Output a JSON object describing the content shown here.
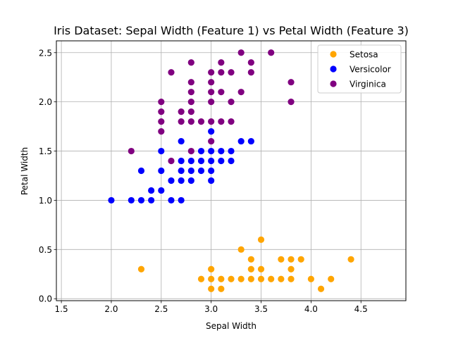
{
  "chart_data": {
    "type": "scatter",
    "title": "Iris Dataset: Sepal Width (Feature 1) vs Petal Width (Feature 3)",
    "xlabel": "Sepal Width",
    "ylabel": "Petal Width",
    "xlim": [
      1.45,
      4.95
    ],
    "ylim": [
      -0.02,
      2.62
    ],
    "xticks": [
      1.5,
      2.0,
      2.5,
      3.0,
      3.5,
      4.0,
      4.5
    ],
    "yticks": [
      0.0,
      0.5,
      1.0,
      1.5,
      2.0,
      2.5
    ],
    "xtick_labels": [
      "1.5",
      "2.0",
      "2.5",
      "3.0",
      "3.5",
      "4.0",
      "4.5"
    ],
    "ytick_labels": [
      "0.0",
      "0.5",
      "1.0",
      "1.5",
      "2.0",
      "2.5"
    ],
    "grid": true,
    "legend_position": "top-right",
    "series": [
      {
        "name": "Setosa",
        "color": "#ffa500",
        "points": [
          [
            2.3,
            0.3
          ],
          [
            2.9,
            0.2
          ],
          [
            3.0,
            0.1
          ],
          [
            3.0,
            0.2
          ],
          [
            3.0,
            0.3
          ],
          [
            3.1,
            0.1
          ],
          [
            3.1,
            0.2
          ],
          [
            3.2,
            0.2
          ],
          [
            3.3,
            0.2
          ],
          [
            3.3,
            0.5
          ],
          [
            3.4,
            0.2
          ],
          [
            3.4,
            0.3
          ],
          [
            3.4,
            0.4
          ],
          [
            3.5,
            0.2
          ],
          [
            3.5,
            0.3
          ],
          [
            3.5,
            0.6
          ],
          [
            3.6,
            0.2
          ],
          [
            3.7,
            0.2
          ],
          [
            3.7,
            0.4
          ],
          [
            3.8,
            0.2
          ],
          [
            3.8,
            0.3
          ],
          [
            3.8,
            0.4
          ],
          [
            3.9,
            0.4
          ],
          [
            4.0,
            0.2
          ],
          [
            4.1,
            0.1
          ],
          [
            4.2,
            0.2
          ],
          [
            4.4,
            0.4
          ]
        ]
      },
      {
        "name": "Versicolor",
        "color": "#0000ff",
        "points": [
          [
            2.0,
            1.0
          ],
          [
            2.2,
            1.0
          ],
          [
            2.3,
            1.0
          ],
          [
            2.3,
            1.3
          ],
          [
            2.4,
            1.0
          ],
          [
            2.4,
            1.1
          ],
          [
            2.5,
            1.1
          ],
          [
            2.5,
            1.3
          ],
          [
            2.5,
            1.5
          ],
          [
            2.6,
            1.0
          ],
          [
            2.6,
            1.2
          ],
          [
            2.7,
            1.0
          ],
          [
            2.7,
            1.2
          ],
          [
            2.7,
            1.3
          ],
          [
            2.7,
            1.4
          ],
          [
            2.7,
            1.6
          ],
          [
            2.8,
            1.2
          ],
          [
            2.8,
            1.3
          ],
          [
            2.8,
            1.4
          ],
          [
            2.9,
            1.3
          ],
          [
            2.9,
            1.4
          ],
          [
            2.9,
            1.5
          ],
          [
            3.0,
            1.2
          ],
          [
            3.0,
            1.3
          ],
          [
            3.0,
            1.4
          ],
          [
            3.0,
            1.5
          ],
          [
            3.0,
            1.7
          ],
          [
            3.1,
            1.4
          ],
          [
            3.1,
            1.5
          ],
          [
            3.2,
            1.4
          ],
          [
            3.2,
            1.5
          ],
          [
            3.3,
            1.6
          ],
          [
            3.4,
            1.6
          ]
        ]
      },
      {
        "name": "Virginica",
        "color": "#800080",
        "points": [
          [
            2.2,
            1.5
          ],
          [
            2.5,
            1.7
          ],
          [
            2.5,
            1.8
          ],
          [
            2.5,
            1.9
          ],
          [
            2.5,
            2.0
          ],
          [
            2.6,
            1.4
          ],
          [
            2.6,
            2.3
          ],
          [
            2.7,
            1.8
          ],
          [
            2.7,
            1.9
          ],
          [
            2.8,
            1.5
          ],
          [
            2.8,
            1.8
          ],
          [
            2.8,
            1.9
          ],
          [
            2.8,
            2.0
          ],
          [
            2.8,
            2.1
          ],
          [
            2.8,
            2.2
          ],
          [
            2.8,
            2.4
          ],
          [
            2.9,
            1.8
          ],
          [
            3.0,
            1.6
          ],
          [
            3.0,
            1.8
          ],
          [
            3.0,
            2.0
          ],
          [
            3.0,
            2.1
          ],
          [
            3.0,
            2.2
          ],
          [
            3.0,
            2.3
          ],
          [
            3.1,
            1.8
          ],
          [
            3.1,
            2.1
          ],
          [
            3.1,
            2.3
          ],
          [
            3.1,
            2.4
          ],
          [
            3.2,
            1.8
          ],
          [
            3.2,
            2.0
          ],
          [
            3.2,
            2.3
          ],
          [
            3.3,
            2.1
          ],
          [
            3.3,
            2.5
          ],
          [
            3.4,
            2.3
          ],
          [
            3.4,
            2.4
          ],
          [
            3.6,
            2.5
          ],
          [
            3.8,
            2.0
          ],
          [
            3.8,
            2.2
          ]
        ]
      }
    ]
  }
}
